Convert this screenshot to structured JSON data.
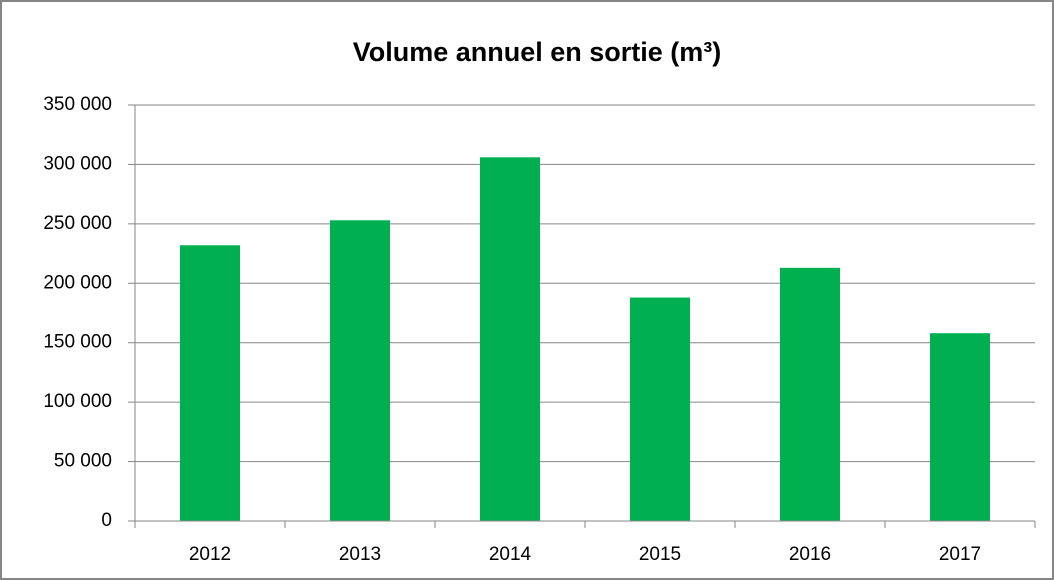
{
  "chart_data": {
    "type": "bar",
    "title": "Volume annuel en sortie (m³)",
    "categories": [
      "2012",
      "2013",
      "2014",
      "2015",
      "2016",
      "2017"
    ],
    "values": [
      232000,
      253000,
      306000,
      188000,
      213000,
      158000
    ],
    "color": "#00b050",
    "ylim": [
      0,
      350000
    ],
    "yticks": [
      0,
      {
        "value": 50000,
        "label": "50 000"
      },
      {
        "value": 100000,
        "label": "100 000"
      },
      {
        "value": 150000,
        "label": "150 000"
      },
      {
        "value": 200000,
        "label": "200 000"
      },
      {
        "value": 250000,
        "label": "250 000"
      },
      {
        "value": 300000,
        "label": "300 000"
      },
      {
        "value": 350000,
        "label": "350 000"
      }
    ],
    "grid": true
  }
}
